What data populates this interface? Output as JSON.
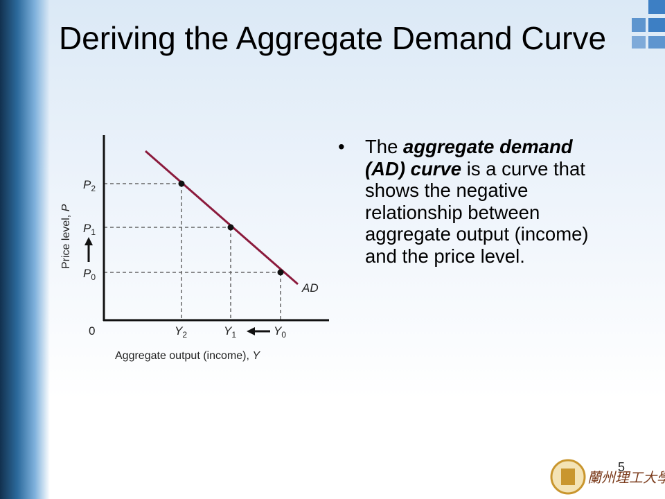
{
  "title": "Deriving the Aggregate Demand Curve",
  "bullet": {
    "lead": "The ",
    "emphasis": "aggregate demand (AD) curve",
    "rest": " is a curve that shows the negative relationship between aggregate output (income) and the price level."
  },
  "diagram": {
    "y_axis_label": {
      "text": "Price level, ",
      "variable": "P"
    },
    "x_axis_label": {
      "text": "Aggregate output (income), ",
      "variable": "Y"
    },
    "origin": "0",
    "curve_label": "AD",
    "price_labels": [
      {
        "letter": "P",
        "sub": "2"
      },
      {
        "letter": "P",
        "sub": "1"
      },
      {
        "letter": "P",
        "sub": "0"
      }
    ],
    "output_labels": [
      {
        "letter": "Y",
        "sub": "2"
      },
      {
        "letter": "Y",
        "sub": "1"
      },
      {
        "letter": "Y",
        "sub": "0"
      }
    ]
  },
  "page_number": "5",
  "logo_text": "蘭州理工大學"
}
